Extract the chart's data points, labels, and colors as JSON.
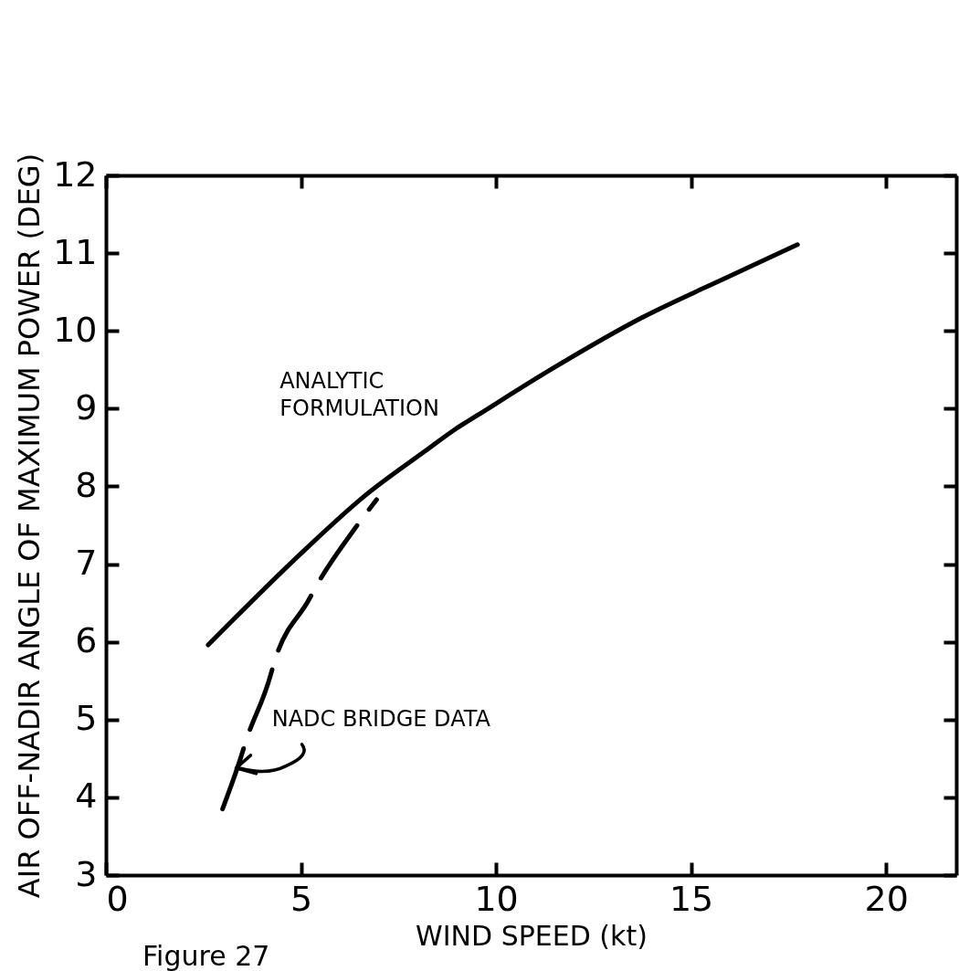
{
  "chart_data": {
    "type": "line",
    "xlabel": "WIND SPEED (kt)",
    "ylabel": "AIR OFF-NADIR ANGLE OF MAXIMUM POWER (DEG)",
    "xlim": [
      0,
      21.8
    ],
    "ylim": [
      3,
      12
    ],
    "xticks": [
      0,
      5,
      10,
      15,
      20
    ],
    "yticks": [
      3,
      4,
      5,
      6,
      7,
      8,
      9,
      10,
      11,
      12
    ],
    "grid": false,
    "marker": "none",
    "series": [
      {
        "name": "ANALYTIC FORMULATION",
        "color": "#000000",
        "line_style": "solid",
        "x": [
          2.62,
          5.07,
          6.64,
          8.2,
          8.97,
          9.51,
          11.43,
          13.74,
          15.93,
          17.73
        ],
        "values": [
          5.96,
          7.17,
          7.88,
          8.46,
          8.74,
          8.91,
          9.51,
          10.17,
          10.69,
          11.11
        ]
      },
      {
        "name": "NADC BRIDGE DATA",
        "color": "#000000",
        "line_style": "dashed",
        "x": [
          2.99,
          3.43,
          3.6,
          4.14,
          4.37,
          5.19,
          5.42,
          6.4,
          6.94
        ],
        "values": [
          3.85,
          4.47,
          4.74,
          5.44,
          5.82,
          6.53,
          6.74,
          7.47,
          7.83
        ]
      }
    ],
    "annotations": [
      "Figure 27"
    ]
  }
}
